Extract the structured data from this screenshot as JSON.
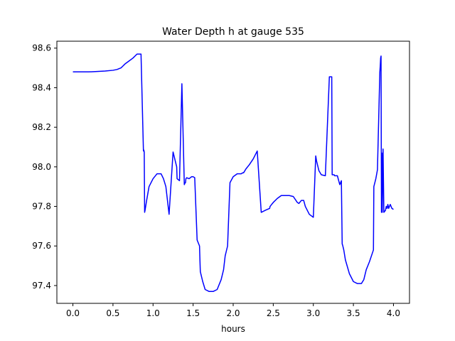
{
  "chart_data": {
    "type": "line",
    "title": "Water Depth h at gauge 535",
    "xlabel": "hours",
    "ylabel": "",
    "xlim": [
      -0.2,
      4.2
    ],
    "ylim": [
      97.31,
      98.635
    ],
    "xticks": [
      0.0,
      0.5,
      1.0,
      1.5,
      2.0,
      2.5,
      3.0,
      3.5,
      4.0
    ],
    "xtick_labels": [
      "0.0",
      "0.5",
      "1.0",
      "1.5",
      "2.0",
      "2.5",
      "3.0",
      "3.5",
      "4.0"
    ],
    "yticks": [
      97.4,
      97.6,
      97.8,
      98.0,
      98.2,
      98.4,
      98.6
    ],
    "ytick_labels": [
      "97.4",
      "97.6",
      "97.8",
      "98.0",
      "98.2",
      "98.4",
      "98.6"
    ],
    "grid": false,
    "legend": "none",
    "series": [
      {
        "color": "#0000ff",
        "x": [
          0.0,
          0.1,
          0.2,
          0.3,
          0.4,
          0.5,
          0.55,
          0.6,
          0.65,
          0.7,
          0.75,
          0.8,
          0.85,
          0.88,
          0.885,
          0.89,
          0.895,
          0.9,
          0.92,
          0.95,
          1.0,
          1.05,
          1.1,
          1.13,
          1.16,
          1.2,
          1.25,
          1.295,
          1.3,
          1.33,
          1.36,
          1.39,
          1.4,
          1.405,
          1.41,
          1.42,
          1.45,
          1.48,
          1.5,
          1.52,
          1.55,
          1.58,
          1.585,
          1.59,
          1.62,
          1.65,
          1.7,
          1.75,
          1.8,
          1.85,
          1.88,
          1.9,
          1.93,
          1.96,
          2.0,
          2.05,
          2.1,
          2.12,
          2.13,
          2.16,
          2.2,
          2.25,
          2.3,
          2.35,
          2.4,
          2.455,
          2.46,
          2.5,
          2.55,
          2.6,
          2.65,
          2.7,
          2.75,
          2.8,
          2.82,
          2.85,
          2.88,
          2.9,
          2.95,
          3.0,
          3.03,
          3.04,
          3.07,
          3.1,
          3.15,
          3.2,
          3.23,
          3.235,
          3.26,
          3.265,
          3.3,
          3.33,
          3.35,
          3.36,
          3.365,
          3.38,
          3.4,
          3.45,
          3.5,
          3.55,
          3.6,
          3.63,
          3.66,
          3.7,
          3.75,
          3.755,
          3.78,
          3.8,
          3.83,
          3.835,
          3.84,
          3.845,
          3.85,
          3.852,
          3.855,
          3.86,
          3.87,
          3.88,
          3.9,
          3.91,
          3.92,
          3.93,
          3.94,
          3.95,
          3.96,
          3.98,
          4.0
        ],
        "y": [
          98.48,
          98.48,
          98.48,
          98.482,
          98.484,
          98.488,
          98.492,
          98.5,
          98.52,
          98.535,
          98.55,
          98.57,
          98.57,
          98.08,
          98.085,
          98.075,
          97.77,
          97.78,
          97.83,
          97.9,
          97.94,
          97.965,
          97.965,
          97.94,
          97.9,
          97.76,
          98.075,
          98.0,
          97.94,
          97.93,
          98.42,
          97.91,
          97.92,
          97.92,
          97.94,
          97.945,
          97.94,
          97.95,
          97.95,
          97.945,
          97.63,
          97.6,
          97.53,
          97.47,
          97.42,
          97.38,
          97.37,
          97.37,
          97.38,
          97.43,
          97.48,
          97.55,
          97.6,
          97.92,
          97.95,
          97.965,
          97.965,
          97.97,
          97.97,
          97.99,
          98.01,
          98.04,
          98.08,
          97.77,
          97.78,
          97.79,
          97.8,
          97.82,
          97.84,
          97.855,
          97.855,
          97.855,
          97.85,
          97.82,
          97.815,
          97.83,
          97.83,
          97.8,
          97.76,
          97.745,
          98.055,
          98.03,
          97.98,
          97.96,
          97.955,
          98.455,
          98.455,
          97.96,
          97.96,
          97.955,
          97.955,
          97.91,
          97.93,
          97.61,
          97.605,
          97.58,
          97.53,
          97.46,
          97.42,
          97.41,
          97.41,
          97.43,
          97.48,
          97.52,
          97.58,
          97.9,
          97.94,
          97.985,
          98.48,
          98.51,
          98.55,
          98.56,
          97.77,
          98.06,
          98.07,
          97.77,
          98.09,
          97.77,
          97.78,
          97.8,
          97.79,
          97.81,
          97.79,
          97.8,
          97.81,
          97.79,
          97.785
        ]
      }
    ]
  }
}
